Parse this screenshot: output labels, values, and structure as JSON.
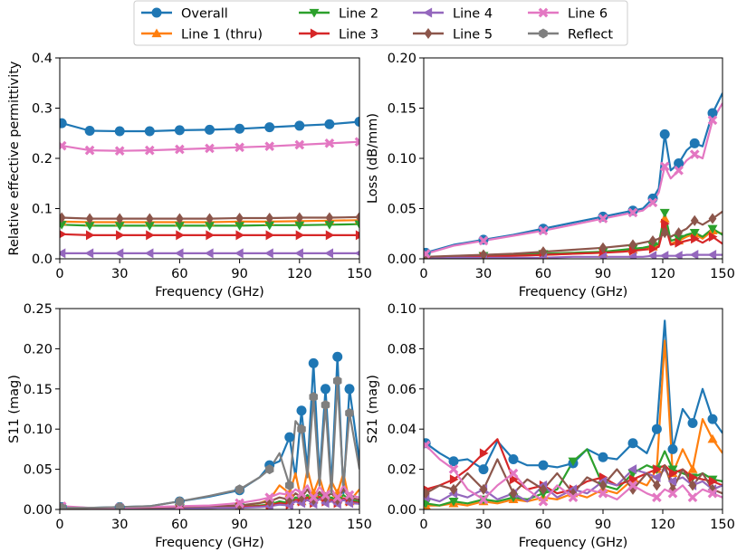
{
  "legend": {
    "entries": [
      {
        "label": "Overall",
        "color": "#1f77b4",
        "marker": "circle"
      },
      {
        "label": "Line 1 (thru)",
        "color": "#ff7f0e",
        "marker": "triangle-up"
      },
      {
        "label": "Line 2",
        "color": "#2ca02c",
        "marker": "triangle-down"
      },
      {
        "label": "Line 3",
        "color": "#d62728",
        "marker": "triangle-right"
      },
      {
        "label": "Line 4",
        "color": "#9467bd",
        "marker": "triangle-left"
      },
      {
        "label": "Line 5",
        "color": "#8c564b",
        "marker": "diamond"
      },
      {
        "label": "Line 6",
        "color": "#e377c2",
        "marker": "x"
      },
      {
        "label": "Reflect",
        "color": "#7f7f7f",
        "marker": "hexagon"
      }
    ]
  },
  "chart_data": [
    {
      "type": "line",
      "xlabel": "Frequency (GHz)",
      "ylabel": "Relative effective permittivity",
      "xlim": [
        0,
        150
      ],
      "ylim": [
        0,
        0.4
      ],
      "xticks": [
        "0",
        "30",
        "60",
        "90",
        "120",
        "150"
      ],
      "yticks": [
        "0.0",
        "0.1",
        "0.2",
        "0.3",
        "0.4"
      ],
      "x": [
        1,
        15,
        30,
        45,
        60,
        75,
        90,
        105,
        120,
        135,
        150
      ],
      "series": [
        {
          "name": "Overall",
          "values": [
            0.27,
            0.255,
            0.254,
            0.254,
            0.256,
            0.257,
            0.259,
            0.262,
            0.265,
            0.268,
            0.273
          ]
        },
        {
          "name": "Line 1 (thru)",
          "values": [
            0.074,
            0.073,
            0.073,
            0.073,
            0.073,
            0.073,
            0.074,
            0.074,
            0.075,
            0.076,
            0.077
          ]
        },
        {
          "name": "Line 2",
          "values": [
            0.068,
            0.066,
            0.066,
            0.066,
            0.066,
            0.066,
            0.066,
            0.067,
            0.067,
            0.068,
            0.069
          ]
        },
        {
          "name": "Line 3",
          "values": [
            0.049,
            0.047,
            0.047,
            0.047,
            0.047,
            0.047,
            0.047,
            0.047,
            0.047,
            0.047,
            0.047
          ]
        },
        {
          "name": "Line 4",
          "values": [
            0.011,
            0.011,
            0.011,
            0.011,
            0.011,
            0.011,
            0.011,
            0.011,
            0.011,
            0.011,
            0.011
          ]
        },
        {
          "name": "Line 5",
          "values": [
            0.082,
            0.08,
            0.08,
            0.08,
            0.08,
            0.08,
            0.081,
            0.081,
            0.082,
            0.082,
            0.083
          ]
        },
        {
          "name": "Line 6",
          "values": [
            0.225,
            0.216,
            0.215,
            0.216,
            0.218,
            0.22,
            0.222,
            0.224,
            0.227,
            0.23,
            0.233
          ]
        }
      ]
    },
    {
      "type": "line",
      "xlabel": "Frequency (GHz)",
      "ylabel": "Loss (dB/mm)",
      "xlim": [
        0,
        150
      ],
      "ylim": [
        0,
        0.2
      ],
      "xticks": [
        "0",
        "30",
        "60",
        "90",
        "120",
        "150"
      ],
      "yticks": [
        "0.00",
        "0.05",
        "0.10",
        "0.15",
        "0.20"
      ],
      "x": [
        1,
        15,
        30,
        45,
        60,
        75,
        90,
        100,
        105,
        110,
        115,
        118,
        121,
        124,
        128,
        132,
        136,
        140,
        145,
        150
      ],
      "series": [
        {
          "name": "Overall",
          "values": [
            0.006,
            0.014,
            0.019,
            0.024,
            0.03,
            0.036,
            0.042,
            0.046,
            0.048,
            0.05,
            0.06,
            0.07,
            0.124,
            0.088,
            0.095,
            0.108,
            0.115,
            0.112,
            0.145,
            0.165
          ]
        },
        {
          "name": "Line 1 (thru)",
          "values": [
            0.001,
            0.002,
            0.003,
            0.003,
            0.004,
            0.005,
            0.006,
            0.008,
            0.009,
            0.01,
            0.012,
            0.014,
            0.04,
            0.015,
            0.018,
            0.022,
            0.025,
            0.02,
            0.028,
            0.025
          ]
        },
        {
          "name": "Line 2",
          "values": [
            0.001,
            0.002,
            0.003,
            0.004,
            0.005,
            0.006,
            0.007,
            0.009,
            0.01,
            0.011,
            0.013,
            0.015,
            0.046,
            0.018,
            0.02,
            0.024,
            0.026,
            0.022,
            0.03,
            0.024
          ]
        },
        {
          "name": "Line 3",
          "values": [
            0.001,
            0.002,
            0.002,
            0.003,
            0.004,
            0.005,
            0.006,
            0.007,
            0.008,
            0.009,
            0.01,
            0.012,
            0.035,
            0.014,
            0.016,
            0.018,
            0.02,
            0.016,
            0.022,
            0.015
          ]
        },
        {
          "name": "Line 4",
          "values": [
            0.0,
            0.001,
            0.001,
            0.001,
            0.001,
            0.002,
            0.002,
            0.002,
            0.002,
            0.002,
            0.003,
            0.003,
            0.003,
            0.003,
            0.003,
            0.004,
            0.004,
            0.004,
            0.004,
            0.004
          ]
        },
        {
          "name": "Line 5",
          "values": [
            0.002,
            0.003,
            0.004,
            0.005,
            0.007,
            0.009,
            0.011,
            0.013,
            0.014,
            0.016,
            0.018,
            0.02,
            0.026,
            0.022,
            0.026,
            0.03,
            0.038,
            0.034,
            0.04,
            0.047
          ]
        },
        {
          "name": "Line 6",
          "values": [
            0.005,
            0.013,
            0.018,
            0.023,
            0.028,
            0.034,
            0.04,
            0.044,
            0.046,
            0.048,
            0.056,
            0.066,
            0.092,
            0.08,
            0.088,
            0.098,
            0.104,
            0.1,
            0.138,
            0.155
          ]
        }
      ]
    },
    {
      "type": "line",
      "xlabel": "Frequency (GHz)",
      "ylabel": "S11 (mag)",
      "xlim": [
        0,
        150
      ],
      "ylim": [
        0,
        0.25
      ],
      "xticks": [
        "0",
        "30",
        "60",
        "90",
        "120",
        "150"
      ],
      "yticks": [
        "0.00",
        "0.05",
        "0.10",
        "0.15",
        "0.20",
        "0.25"
      ],
      "x": [
        1,
        15,
        30,
        45,
        60,
        75,
        90,
        100,
        105,
        110,
        115,
        118,
        121,
        124,
        127,
        130,
        133,
        136,
        139,
        142,
        145,
        150
      ],
      "series": [
        {
          "name": "Overall",
          "values": [
            0.003,
            0.002,
            0.003,
            0.004,
            0.01,
            0.016,
            0.024,
            0.04,
            0.055,
            0.06,
            0.09,
            0.04,
            0.123,
            0.05,
            0.182,
            0.04,
            0.15,
            0.03,
            0.19,
            0.02,
            0.15,
            0.06
          ]
        },
        {
          "name": "Line 1 (thru)",
          "values": [
            0.001,
            0.001,
            0.001,
            0.002,
            0.002,
            0.003,
            0.004,
            0.008,
            0.012,
            0.03,
            0.02,
            0.045,
            0.01,
            0.05,
            0.02,
            0.04,
            0.015,
            0.035,
            0.02,
            0.045,
            0.01,
            0.025
          ]
        },
        {
          "name": "Line 2",
          "values": [
            0.001,
            0.001,
            0.001,
            0.001,
            0.002,
            0.002,
            0.003,
            0.005,
            0.006,
            0.01,
            0.008,
            0.015,
            0.012,
            0.018,
            0.01,
            0.02,
            0.012,
            0.015,
            0.01,
            0.018,
            0.012,
            0.01
          ]
        },
        {
          "name": "Line 3",
          "values": [
            0.001,
            0.001,
            0.001,
            0.001,
            0.002,
            0.002,
            0.003,
            0.004,
            0.005,
            0.008,
            0.006,
            0.012,
            0.01,
            0.015,
            0.008,
            0.016,
            0.01,
            0.012,
            0.008,
            0.014,
            0.01,
            0.008
          ]
        },
        {
          "name": "Line 4",
          "values": [
            0.001,
            0.001,
            0.001,
            0.001,
            0.001,
            0.002,
            0.002,
            0.003,
            0.004,
            0.006,
            0.005,
            0.01,
            0.008,
            0.012,
            0.007,
            0.013,
            0.008,
            0.01,
            0.007,
            0.012,
            0.008,
            0.007
          ]
        },
        {
          "name": "Line 5",
          "values": [
            0.002,
            0.001,
            0.002,
            0.002,
            0.003,
            0.004,
            0.005,
            0.008,
            0.01,
            0.015,
            0.012,
            0.02,
            0.015,
            0.025,
            0.012,
            0.022,
            0.015,
            0.02,
            0.012,
            0.025,
            0.015,
            0.012
          ]
        },
        {
          "name": "Line 6",
          "values": [
            0.004,
            0.002,
            0.002,
            0.003,
            0.004,
            0.005,
            0.008,
            0.012,
            0.015,
            0.02,
            0.018,
            0.025,
            0.02,
            0.03,
            0.015,
            0.028,
            0.018,
            0.025,
            0.015,
            0.03,
            0.018,
            0.015
          ]
        },
        {
          "name": "Reflect",
          "values": [
            0.002,
            0.002,
            0.003,
            0.004,
            0.01,
            0.017,
            0.025,
            0.04,
            0.05,
            0.07,
            0.03,
            0.11,
            0.1,
            0.04,
            0.14,
            0.03,
            0.13,
            0.02,
            0.16,
            0.03,
            0.12,
            0.05
          ]
        }
      ]
    },
    {
      "type": "line",
      "xlabel": "Frequency (GHz)",
      "ylabel": "S21 (mag)",
      "xlim": [
        0,
        150
      ],
      "ylim": [
        0,
        0.1
      ],
      "xticks": [
        "0",
        "30",
        "60",
        "90",
        "120",
        "150"
      ],
      "yticks": [
        "0.00",
        "0.02",
        "0.04",
        "0.06",
        "0.08",
        "0.10"
      ],
      "x": [
        1,
        8,
        15,
        22,
        30,
        37,
        45,
        52,
        60,
        67,
        75,
        82,
        90,
        97,
        105,
        112,
        117,
        121,
        125,
        130,
        135,
        140,
        145,
        150
      ],
      "series": [
        {
          "name": "Overall",
          "values": [
            0.033,
            0.028,
            0.024,
            0.025,
            0.02,
            0.034,
            0.025,
            0.022,
            0.022,
            0.021,
            0.023,
            0.03,
            0.026,
            0.025,
            0.033,
            0.028,
            0.04,
            0.094,
            0.03,
            0.05,
            0.043,
            0.06,
            0.045,
            0.038
          ]
        },
        {
          "name": "Line 1 (thru)",
          "values": [
            0.002,
            0.002,
            0.003,
            0.002,
            0.004,
            0.003,
            0.005,
            0.004,
            0.006,
            0.005,
            0.008,
            0.006,
            0.01,
            0.008,
            0.015,
            0.012,
            0.02,
            0.084,
            0.018,
            0.03,
            0.02,
            0.045,
            0.035,
            0.028
          ]
        },
        {
          "name": "Line 2",
          "values": [
            0.003,
            0.002,
            0.004,
            0.003,
            0.005,
            0.004,
            0.006,
            0.005,
            0.008,
            0.01,
            0.024,
            0.03,
            0.012,
            0.01,
            0.018,
            0.022,
            0.02,
            0.029,
            0.02,
            0.018,
            0.016,
            0.018,
            0.015,
            0.014
          ]
        },
        {
          "name": "Line 3",
          "values": [
            0.01,
            0.012,
            0.015,
            0.02,
            0.028,
            0.035,
            0.015,
            0.01,
            0.012,
            0.008,
            0.01,
            0.014,
            0.016,
            0.012,
            0.015,
            0.018,
            0.02,
            0.022,
            0.018,
            0.02,
            0.016,
            0.015,
            0.014,
            0.012
          ]
        },
        {
          "name": "Line 4",
          "values": [
            0.006,
            0.004,
            0.008,
            0.006,
            0.01,
            0.005,
            0.008,
            0.004,
            0.012,
            0.006,
            0.01,
            0.008,
            0.014,
            0.012,
            0.02,
            0.018,
            0.016,
            0.02,
            0.014,
            0.016,
            0.012,
            0.014,
            0.01,
            0.012
          ]
        },
        {
          "name": "Line 5",
          "values": [
            0.008,
            0.012,
            0.01,
            0.018,
            0.01,
            0.025,
            0.008,
            0.015,
            0.01,
            0.018,
            0.008,
            0.016,
            0.012,
            0.02,
            0.01,
            0.018,
            0.012,
            0.022,
            0.01,
            0.02,
            0.012,
            0.018,
            0.01,
            0.008
          ]
        },
        {
          "name": "Line 6",
          "values": [
            0.032,
            0.025,
            0.02,
            0.01,
            0.005,
            0.012,
            0.018,
            0.01,
            0.004,
            0.012,
            0.006,
            0.01,
            0.008,
            0.005,
            0.012,
            0.008,
            0.006,
            0.01,
            0.008,
            0.012,
            0.006,
            0.01,
            0.008,
            0.006
          ]
        }
      ]
    }
  ]
}
